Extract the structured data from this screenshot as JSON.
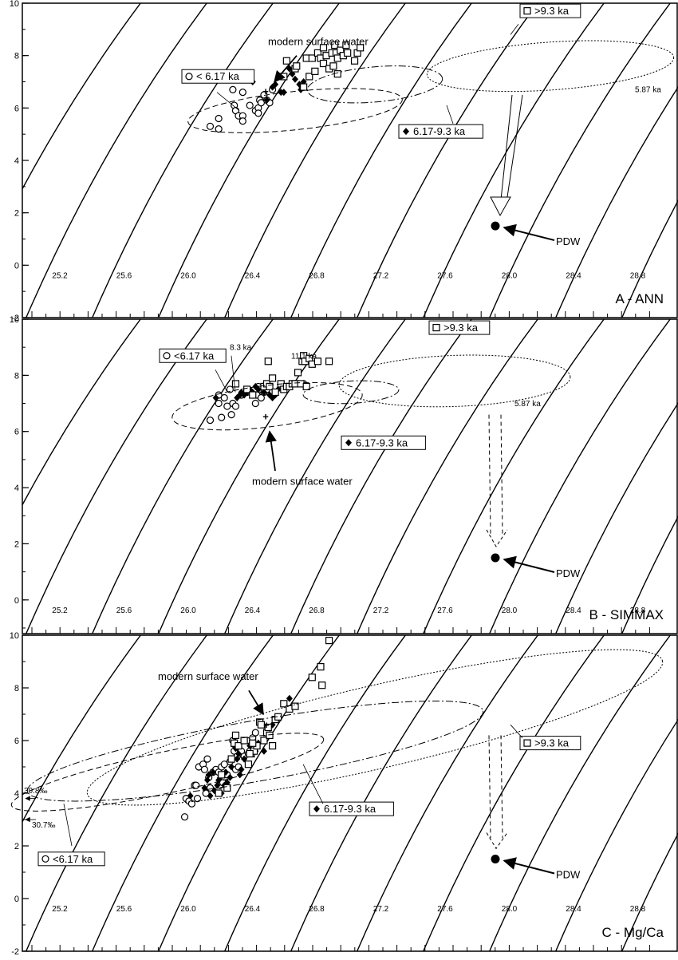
{
  "chart_data": [
    {
      "type": "scatter",
      "panel_label": "A - ANN",
      "y_ticks": [
        "-2",
        "0",
        "2",
        "4",
        "6",
        "8",
        "10"
      ],
      "ylim": [
        -2,
        10
      ],
      "isopycnal_labels": [
        "25.2",
        "25.6",
        "26.0",
        "26.4",
        "26.8",
        "27.2",
        "27.6",
        "28.0",
        "28.4",
        "28.8"
      ],
      "legend": [
        {
          "marker": "open-circle",
          "label": "< 6.17 ka"
        },
        {
          "marker": "filled-diamond",
          "label": "6.17-9.3 ka"
        },
        {
          "marker": "open-square",
          "label": ">9.3 ka"
        }
      ],
      "annotations": {
        "modern": "modern surface water",
        "pdw": "PDW",
        "age_note": "5.87 ka"
      },
      "points": {
        "circles": [
          [
            1,
            5.3
          ],
          [
            1.3,
            5.6
          ],
          [
            1.3,
            5.2
          ],
          [
            1.8,
            6.7
          ],
          [
            1.85,
            6.1
          ],
          [
            1.9,
            5.9
          ],
          [
            2.0,
            5.7
          ],
          [
            2.15,
            6.6
          ],
          [
            2.15,
            5.7
          ],
          [
            2.15,
            5.5
          ],
          [
            2.4,
            6.1
          ],
          [
            2.6,
            5.9
          ],
          [
            2.7,
            6.0
          ],
          [
            2.7,
            5.8
          ],
          [
            2.75,
            6.3
          ],
          [
            2.8,
            6.2
          ],
          [
            2.9,
            6.5
          ],
          [
            3.0,
            6.3
          ],
          [
            3.1,
            6.2
          ],
          [
            3.2,
            6.7
          ]
        ],
        "diamonds": [
          [
            2.5,
            7.0
          ],
          [
            3.0,
            6.3
          ],
          [
            3.2,
            6.8
          ],
          [
            3.3,
            6.9
          ],
          [
            3.5,
            6.6
          ],
          [
            3.6,
            6.6
          ],
          [
            3.8,
            7.5
          ],
          [
            3.9,
            7.3
          ],
          [
            4.0,
            7.1
          ],
          [
            4.15,
            6.9
          ],
          [
            4.2,
            6.7
          ],
          [
            4.3,
            7.0
          ]
        ],
        "squares": [
          [
            3.6,
            7.2
          ],
          [
            3.7,
            7.8
          ],
          [
            4.0,
            7.5
          ],
          [
            4.05,
            7.6
          ],
          [
            4.3,
            6.8
          ],
          [
            4.4,
            7.9
          ],
          [
            4.5,
            7.2
          ],
          [
            4.6,
            7.9
          ],
          [
            4.7,
            7.4
          ],
          [
            4.8,
            8.1
          ],
          [
            4.9,
            7.9
          ],
          [
            5.0,
            8.3
          ],
          [
            5.0,
            7.7
          ],
          [
            5.1,
            8.0
          ],
          [
            5.2,
            7.5
          ],
          [
            5.3,
            8.1
          ],
          [
            5.35,
            7.6
          ],
          [
            5.4,
            8.4
          ],
          [
            5.45,
            8.1
          ],
          [
            5.5,
            7.9
          ],
          [
            5.5,
            7.3
          ],
          [
            5.6,
            8.2
          ],
          [
            5.7,
            8.0
          ],
          [
            5.8,
            8.4
          ],
          [
            5.85,
            8.1
          ],
          [
            6.2,
            8.1
          ],
          [
            6.3,
            8.3
          ],
          [
            6.1,
            7.8
          ]
        ]
      }
    },
    {
      "type": "scatter",
      "panel_label": "B - SIMMAX",
      "y_ticks": [
        "0",
        "2",
        "4",
        "6",
        "8",
        "10"
      ],
      "ylim": [
        -1.2,
        10
      ],
      "isopycnal_labels": [
        "25.2",
        "25.6",
        "26.0",
        "26.4",
        "26.8",
        "27.2",
        "27.6",
        "28.0",
        "28.4",
        "28.8"
      ],
      "legend": [
        {
          "marker": "open-circle",
          "label": "<6.17 ka"
        },
        {
          "marker": "filled-diamond",
          "label": "6.17-9.3 ka"
        },
        {
          "marker": "open-square",
          "label": ">9.3 ka"
        }
      ],
      "annotations": {
        "modern": "modern surface water",
        "pdw": "PDW",
        "age_note_1": "8.3 ka",
        "age_note_2": "11.1 ka",
        "age_note_3": "5.87 ka"
      },
      "points": {
        "circles": [
          [
            1,
            6.4
          ],
          [
            1.3,
            7.3
          ],
          [
            1.3,
            7.0
          ],
          [
            1.4,
            6.5
          ],
          [
            1.5,
            7.2
          ],
          [
            1.6,
            6.9
          ],
          [
            1.7,
            7.5
          ],
          [
            1.75,
            6.6
          ],
          [
            1.8,
            7.0
          ],
          [
            1.9,
            6.9
          ],
          [
            2.1,
            7.3
          ],
          [
            2.3,
            7.4
          ],
          [
            2.5,
            7.3
          ],
          [
            2.6,
            7.0
          ],
          [
            2.65,
            7.3
          ],
          [
            2.7,
            7.6
          ],
          [
            2.75,
            7.5
          ],
          [
            2.8,
            7.2
          ],
          [
            2.9,
            7.4
          ],
          [
            3.0,
            7.5
          ],
          [
            4.3,
            7.7
          ]
        ],
        "diamonds": [
          [
            1.2,
            7.2
          ],
          [
            1.95,
            7.2
          ],
          [
            2.05,
            7.3
          ],
          [
            2.1,
            7.4
          ],
          [
            2.2,
            7.3
          ],
          [
            2.3,
            7.4
          ],
          [
            2.4,
            7.5
          ],
          [
            2.5,
            7.4
          ],
          [
            2.6,
            7.6
          ],
          [
            2.7,
            7.5
          ],
          [
            2.9,
            7.4
          ],
          [
            3.1,
            7.3
          ],
          [
            3.2,
            7.2
          ],
          [
            3.3,
            7.3
          ],
          [
            3.4,
            7.5
          ]
        ],
        "squares": [
          [
            1.9,
            7.7
          ],
          [
            2.3,
            7.5
          ],
          [
            2.5,
            7.3
          ],
          [
            2.9,
            7.6
          ],
          [
            3.0,
            7.7
          ],
          [
            3.1,
            7.6
          ],
          [
            3.2,
            7.9
          ],
          [
            3.3,
            7.4
          ],
          [
            3.5,
            7.7
          ],
          [
            3.6,
            7.5
          ],
          [
            3.7,
            7.6
          ],
          [
            3.8,
            7.6
          ],
          [
            3.9,
            7.7
          ],
          [
            4.0,
            7.7
          ],
          [
            4.1,
            8.1
          ],
          [
            4.2,
            7.7
          ],
          [
            4.25,
            8.5
          ],
          [
            4.3,
            8.7
          ],
          [
            4.35,
            8.5
          ],
          [
            4.4,
            7.6
          ],
          [
            4.5,
            8.6
          ],
          [
            4.6,
            8.4
          ],
          [
            3.05,
            8.5
          ],
          [
            4.8,
            8.5
          ],
          [
            5.2,
            8.5
          ]
        ]
      }
    },
    {
      "type": "scatter",
      "panel_label": "C - Mg/Ca",
      "y_ticks": [
        "-2",
        "0",
        "2",
        "4",
        "6",
        "8",
        "10"
      ],
      "ylim": [
        -2,
        10
      ],
      "isopycnal_labels": [
        "25.2",
        "25.6",
        "26.0",
        "26.4",
        "26.8",
        "27.2",
        "27.6",
        "28.0",
        "28.4",
        "28.8"
      ],
      "legend": [
        {
          "marker": "open-circle",
          "label": "<6.17 ka"
        },
        {
          "marker": "filled-diamond",
          "label": "6.17-9.3 ka"
        },
        {
          "marker": "open-square",
          "label": ">9.3 ka"
        }
      ],
      "annotations": {
        "modern": "modern surface water",
        "pdw": "PDW",
        "salinity_1": "30.8‰",
        "salinity_2": "30.7‰"
      },
      "points": {
        "circles": [
          [
            0.1,
            3.1
          ],
          [
            0.15,
            3.8
          ],
          [
            0.25,
            3.7
          ],
          [
            0.35,
            3.6
          ],
          [
            0.45,
            4.3
          ],
          [
            0.5,
            4.3
          ],
          [
            0.55,
            3.8
          ],
          [
            0.6,
            5.0
          ],
          [
            0.75,
            5.1
          ],
          [
            0.8,
            4.9
          ],
          [
            0.85,
            4.0
          ],
          [
            0.9,
            5.3
          ],
          [
            0.95,
            4.6
          ],
          [
            1.0,
            4.2
          ],
          [
            1.1,
            4.8
          ],
          [
            1.2,
            4.9
          ],
          [
            1.3,
            4.8
          ],
          [
            1.35,
            4.3
          ],
          [
            1.4,
            5.0
          ],
          [
            1.45,
            4.4
          ],
          [
            1.5,
            5.1
          ],
          [
            1.6,
            4.7
          ],
          [
            1.7,
            5.2
          ],
          [
            1.8,
            6.0
          ],
          [
            1.85,
            5.6
          ],
          [
            1.9,
            4.9
          ],
          [
            1.95,
            5.4
          ],
          [
            2.0,
            5.0
          ],
          [
            2.1,
            5.6
          ],
          [
            2.2,
            5.4
          ],
          [
            2.3,
            6.0
          ],
          [
            2.35,
            5.5
          ],
          [
            2.4,
            5.6
          ],
          [
            2.5,
            6.1
          ],
          [
            2.6,
            6.3
          ]
        ],
        "diamonds": [
          [
            0.3,
            3.9
          ],
          [
            0.8,
            4.2
          ],
          [
            0.9,
            4.5
          ],
          [
            0.95,
            4.7
          ],
          [
            1.0,
            3.9
          ],
          [
            1.1,
            4.8
          ],
          [
            1.15,
            4.1
          ],
          [
            1.25,
            4.3
          ],
          [
            1.3,
            4.5
          ],
          [
            1.35,
            4.6
          ],
          [
            1.4,
            4.0
          ],
          [
            1.5,
            4.3
          ],
          [
            1.55,
            4.8
          ],
          [
            1.6,
            4.4
          ],
          [
            1.7,
            4.6
          ],
          [
            1.75,
            5.0
          ],
          [
            1.85,
            5.8
          ],
          [
            1.9,
            5.7
          ],
          [
            1.95,
            5.3
          ],
          [
            2.0,
            5.5
          ],
          [
            2.05,
            4.7
          ],
          [
            2.1,
            4.9
          ],
          [
            2.2,
            5.3
          ],
          [
            2.4,
            5.8
          ],
          [
            2.6,
            5.6
          ],
          [
            2.7,
            5.9
          ],
          [
            2.9,
            5.6
          ],
          [
            3.0,
            6.4
          ],
          [
            3.2,
            6.6
          ],
          [
            3.4,
            6.9
          ],
          [
            3.8,
            7.6
          ]
        ],
        "squares": [
          [
            1.3,
            4.0
          ],
          [
            1.4,
            4.7
          ],
          [
            1.6,
            4.2
          ],
          [
            1.75,
            5.3
          ],
          [
            1.85,
            5.9
          ],
          [
            1.9,
            6.2
          ],
          [
            2.0,
            5.8
          ],
          [
            2.2,
            6.0
          ],
          [
            2.35,
            5.1
          ],
          [
            2.45,
            5.5
          ],
          [
            2.55,
            5.6
          ],
          [
            2.65,
            5.8
          ],
          [
            2.75,
            6.7
          ],
          [
            2.8,
            6.6
          ],
          [
            2.9,
            6.0
          ],
          [
            3.0,
            6.3
          ],
          [
            3.05,
            6.5
          ],
          [
            3.1,
            6.2
          ],
          [
            3.2,
            5.8
          ],
          [
            3.3,
            6.8
          ],
          [
            3.4,
            6.9
          ],
          [
            3.6,
            7.4
          ],
          [
            3.8,
            7.2
          ],
          [
            4.0,
            7.3
          ],
          [
            4.6,
            8.4
          ],
          [
            4.9,
            8.8
          ],
          [
            4.95,
            8.1
          ],
          [
            5.2,
            9.8
          ],
          [
            2.4,
            5.5
          ],
          [
            2.5,
            5.9
          ]
        ]
      }
    }
  ]
}
